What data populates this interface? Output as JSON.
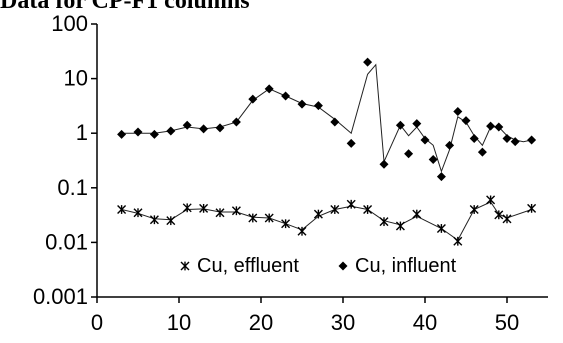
{
  "chart_data": {
    "type": "scatter",
    "title": "Data for CP-F1 columns",
    "xlabel": "",
    "ylabel": "",
    "xlim": [
      0,
      55
    ],
    "ylim": [
      0.001,
      100
    ],
    "y_scale": "log",
    "grid": false,
    "legend_position": "bottom-right",
    "x_ticks": [
      "0",
      "10",
      "20",
      "30",
      "40",
      "50"
    ],
    "y_ticks": [
      "0.001",
      "0.01",
      "0.1",
      "1",
      "10",
      "100"
    ],
    "series": [
      {
        "name": "Cu, effluent",
        "marker": "asterisk",
        "color": "#000000",
        "points": [
          [
            3,
            0.04
          ],
          [
            5,
            0.035
          ],
          [
            7,
            0.026
          ],
          [
            9,
            0.025
          ],
          [
            11,
            0.043
          ],
          [
            13,
            0.042
          ],
          [
            15,
            0.035
          ],
          [
            17,
            0.038
          ],
          [
            19,
            0.028
          ],
          [
            21,
            0.028
          ],
          [
            23,
            0.022
          ],
          [
            25,
            0.016
          ],
          [
            27,
            0.033
          ],
          [
            29,
            0.04
          ],
          [
            31,
            0.05
          ],
          [
            33,
            0.04
          ],
          [
            35,
            0.024
          ],
          [
            37,
            0.02
          ],
          [
            39,
            0.033
          ],
          [
            42,
            0.018
          ],
          [
            44,
            0.0105
          ],
          [
            46,
            0.04
          ],
          [
            48,
            0.06
          ],
          [
            49,
            0.032
          ],
          [
            50,
            0.027
          ],
          [
            53,
            0.042
          ]
        ],
        "trend": [
          [
            3,
            0.04
          ],
          [
            5,
            0.034
          ],
          [
            7,
            0.027
          ],
          [
            9,
            0.026
          ],
          [
            11,
            0.04
          ],
          [
            13,
            0.041
          ],
          [
            15,
            0.036
          ],
          [
            17,
            0.036
          ],
          [
            19,
            0.029
          ],
          [
            21,
            0.028
          ],
          [
            23,
            0.022
          ],
          [
            25,
            0.017
          ],
          [
            27,
            0.03
          ],
          [
            29,
            0.04
          ],
          [
            31,
            0.046
          ],
          [
            33,
            0.04
          ],
          [
            35,
            0.025
          ],
          [
            37,
            0.021
          ],
          [
            39,
            0.03
          ],
          [
            42,
            0.018
          ],
          [
            44,
            0.011
          ],
          [
            46,
            0.04
          ],
          [
            48,
            0.055
          ],
          [
            49,
            0.033
          ],
          [
            50,
            0.028
          ],
          [
            53,
            0.04
          ]
        ]
      },
      {
        "name": "Cu, influent",
        "marker": "diamond",
        "color": "#000000",
        "points": [
          [
            3,
            0.95
          ],
          [
            5,
            1.05
          ],
          [
            7,
            0.95
          ],
          [
            9,
            1.1
          ],
          [
            11,
            1.4
          ],
          [
            13,
            1.2
          ],
          [
            15,
            1.25
          ],
          [
            17,
            1.6
          ],
          [
            19,
            4.2
          ],
          [
            21,
            6.5
          ],
          [
            23,
            4.8
          ],
          [
            25,
            3.4
          ],
          [
            27,
            3.2
          ],
          [
            29,
            1.6
          ],
          [
            31,
            0.65
          ],
          [
            33,
            20
          ],
          [
            35,
            0.27
          ],
          [
            37,
            1.4
          ],
          [
            38,
            0.42
          ],
          [
            39,
            1.5
          ],
          [
            40,
            0.75
          ],
          [
            41,
            0.33
          ],
          [
            42,
            0.16
          ],
          [
            43,
            0.6
          ],
          [
            44,
            2.5
          ],
          [
            45,
            1.7
          ],
          [
            46,
            0.8
          ],
          [
            47,
            0.45
          ],
          [
            48,
            1.35
          ],
          [
            49,
            1.3
          ],
          [
            50,
            0.8
          ],
          [
            51,
            0.7
          ],
          [
            53,
            0.75
          ]
        ],
        "trend": [
          [
            3,
            1.0
          ],
          [
            5,
            1.0
          ],
          [
            7,
            1.0
          ],
          [
            9,
            1.1
          ],
          [
            11,
            1.3
          ],
          [
            13,
            1.2
          ],
          [
            15,
            1.3
          ],
          [
            17,
            1.6
          ],
          [
            19,
            4.0
          ],
          [
            21,
            6.5
          ],
          [
            23,
            4.8
          ],
          [
            25,
            3.5
          ],
          [
            27,
            3.0
          ],
          [
            29,
            1.8
          ],
          [
            31,
            1.0
          ],
          [
            33,
            12
          ],
          [
            34,
            18
          ],
          [
            35,
            0.3
          ],
          [
            37,
            1.4
          ],
          [
            38,
            0.9
          ],
          [
            39,
            1.3
          ],
          [
            40,
            0.8
          ],
          [
            41,
            0.6
          ],
          [
            42,
            0.2
          ],
          [
            43,
            0.5
          ],
          [
            44,
            2.0
          ],
          [
            45,
            1.6
          ],
          [
            46,
            0.9
          ],
          [
            47,
            0.6
          ],
          [
            48,
            1.3
          ],
          [
            49,
            1.3
          ],
          [
            50,
            0.9
          ],
          [
            51,
            0.75
          ],
          [
            52,
            0.7
          ],
          [
            53,
            0.75
          ]
        ]
      }
    ]
  }
}
